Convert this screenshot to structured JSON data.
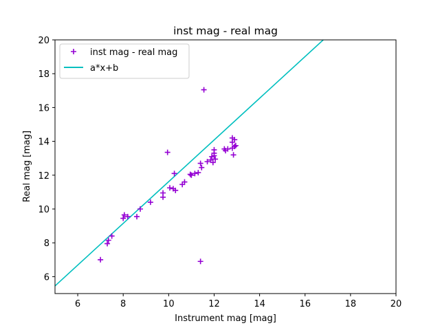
{
  "chart_data": {
    "type": "scatter",
    "title": "inst mag - real mag",
    "xlabel": "Instrument mag [mag]",
    "ylabel": "Real mag [mag]",
    "xlim": [
      5,
      20
    ],
    "ylim": [
      5,
      20
    ],
    "xticks": [
      6,
      8,
      10,
      12,
      14,
      16,
      18,
      20
    ],
    "yticks": [
      6,
      8,
      10,
      12,
      14,
      16,
      18,
      20
    ],
    "grid": false,
    "legend_position": "top-left",
    "series": [
      {
        "name": "inst mag - real mag",
        "type": "scatter",
        "marker": "plus",
        "color": "#9400d3",
        "points": [
          [
            7.0,
            7.0
          ],
          [
            7.3,
            7.95
          ],
          [
            7.35,
            8.15
          ],
          [
            7.5,
            8.4
          ],
          [
            8.0,
            9.45
          ],
          [
            8.05,
            9.65
          ],
          [
            8.2,
            9.55
          ],
          [
            8.6,
            9.55
          ],
          [
            8.75,
            10.0
          ],
          [
            9.2,
            10.4
          ],
          [
            9.75,
            10.7
          ],
          [
            9.75,
            10.95
          ],
          [
            9.95,
            13.35
          ],
          [
            10.05,
            11.25
          ],
          [
            10.2,
            11.2
          ],
          [
            10.25,
            12.1
          ],
          [
            10.3,
            11.1
          ],
          [
            10.6,
            11.45
          ],
          [
            10.7,
            11.6
          ],
          [
            10.95,
            12.05
          ],
          [
            11.0,
            12.0
          ],
          [
            11.15,
            12.1
          ],
          [
            11.3,
            12.15
          ],
          [
            11.4,
            12.7
          ],
          [
            11.45,
            12.45
          ],
          [
            11.4,
            6.9
          ],
          [
            11.55,
            17.05
          ],
          [
            11.7,
            12.8
          ],
          [
            11.85,
            12.9
          ],
          [
            11.9,
            13.1
          ],
          [
            11.95,
            12.75
          ],
          [
            12.0,
            13.3
          ],
          [
            12.0,
            13.5
          ],
          [
            12.05,
            12.95
          ],
          [
            12.0,
            13.15
          ],
          [
            12.45,
            13.55
          ],
          [
            12.5,
            13.45
          ],
          [
            12.6,
            13.55
          ],
          [
            12.8,
            13.6
          ],
          [
            12.8,
            14.2
          ],
          [
            12.8,
            13.95
          ],
          [
            12.85,
            13.2
          ],
          [
            12.9,
            14.1
          ],
          [
            12.95,
            13.75
          ],
          [
            12.9,
            13.7
          ]
        ]
      },
      {
        "name": "a*x+b",
        "type": "line",
        "color": "#00bfbf",
        "x": [
          5,
          16.8
        ],
        "y": [
          5.45,
          20.0
        ]
      }
    ]
  }
}
